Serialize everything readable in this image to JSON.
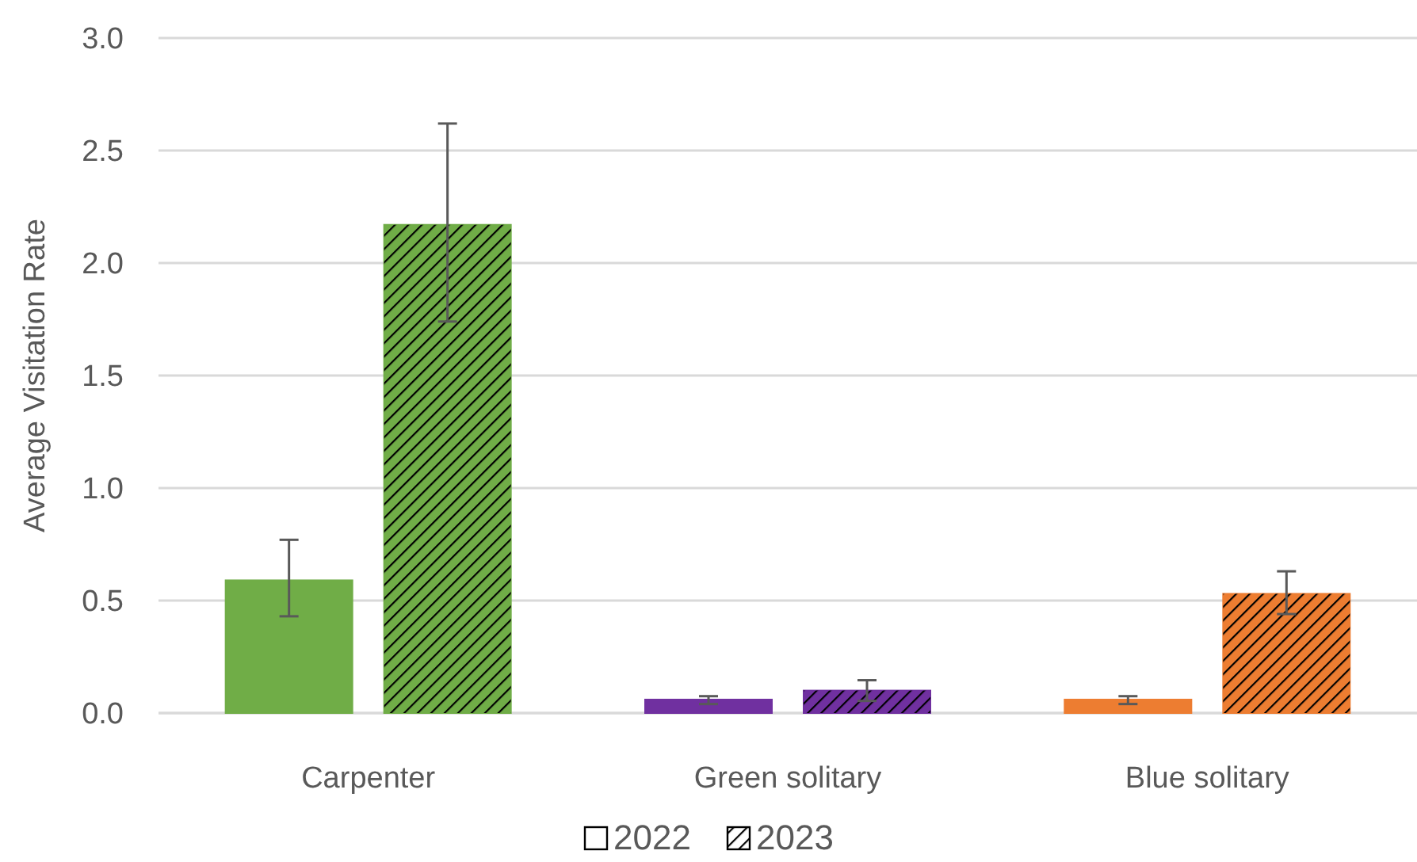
{
  "chart_data": {
    "type": "bar",
    "ylabel": "Average Visitation Rate",
    "categories": [
      "Carpenter",
      "Green solitary",
      "Blue solitary"
    ],
    "series": [
      {
        "name": "2022",
        "color": "#ffffff",
        "colors": [
          "#70ad47",
          "#7030a0",
          "#ed7d31"
        ],
        "values": [
          0.59,
          0.06,
          0.06
        ],
        "errors": [
          [
            0.43,
            0.77
          ],
          [
            0.04,
            0.075
          ],
          [
            0.04,
            0.075
          ]
        ]
      },
      {
        "name": "2023",
        "color": "#000000",
        "colors": [
          "#70ad47",
          "#7030a0",
          "#ed7d31"
        ],
        "values": [
          2.17,
          0.1,
          0.53
        ],
        "errors": [
          [
            1.74,
            2.62
          ],
          [
            0.054,
            0.146
          ],
          [
            0.44,
            0.63
          ]
        ]
      }
    ],
    "ylim": [
      0,
      3
    ],
    "yticks": [
      {
        "value": 0,
        "label": "0.0"
      },
      {
        "value": 0.5,
        "label": "0.5"
      },
      {
        "value": 1,
        "label": "1.0"
      },
      {
        "value": 1.5,
        "label": "1.5"
      },
      {
        "value": 2,
        "label": "2.0"
      },
      {
        "value": 2.5,
        "label": "2.5"
      },
      {
        "value": 3,
        "label": "3.0"
      }
    ],
    "grid": "y",
    "legend": "bottom"
  }
}
